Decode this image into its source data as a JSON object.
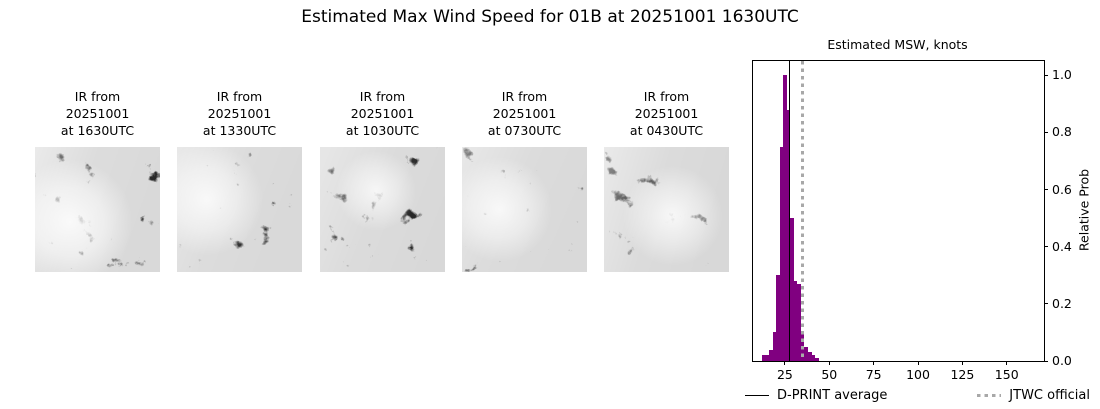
{
  "title": "Estimated Max Wind Speed for 01B at 20251001 1630UTC",
  "panels": [
    {
      "label": "IR from\n20251001\nat 1630UTC"
    },
    {
      "label": "IR from\n20251001\nat 1330UTC"
    },
    {
      "label": "IR from\n20251001\nat 1030UTC"
    },
    {
      "label": "IR from\n20251001\nat 0730UTC"
    },
    {
      "label": "IR from\n20251001\nat 0430UTC"
    }
  ],
  "chart_data": {
    "type": "bar",
    "title": "Estimated MSW, knots",
    "ylabel": "Relative Prob",
    "xlabel": "",
    "xlim": [
      7,
      171
    ],
    "ylim": [
      0,
      1.05
    ],
    "xticks": [
      25,
      50,
      75,
      100,
      125,
      150
    ],
    "yticks": [
      "0.0",
      "0.2",
      "0.4",
      "0.6",
      "0.8",
      "1.0"
    ],
    "grid": false,
    "bar_color": "#800080",
    "bin_width": 2,
    "bins": [
      13,
      15,
      17,
      19,
      21,
      23,
      25,
      27,
      29,
      31,
      33,
      35,
      37,
      39,
      41,
      43
    ],
    "values": [
      0.02,
      0.02,
      0.04,
      0.1,
      0.3,
      0.75,
      1.0,
      0.88,
      0.5,
      0.28,
      0.27,
      0.1,
      0.05,
      0.03,
      0.02,
      0.01
    ],
    "dprint_average_knots": 27.5,
    "jtwc_official_knots": 35,
    "line_colors": {
      "dprint_average": "#000000",
      "jtwc_official": "#a8a8a8"
    },
    "legend": [
      {
        "label": "D-PRINT average",
        "style": "solid-black-line"
      },
      {
        "label": "JTWC official",
        "style": "dotted-gray-line"
      }
    ]
  }
}
